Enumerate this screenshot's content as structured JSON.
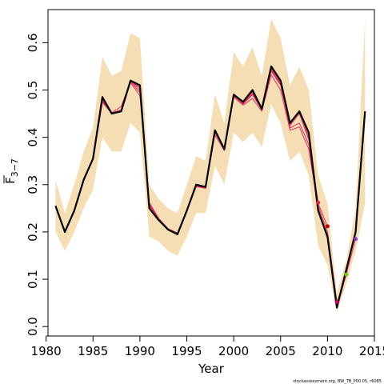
{
  "chart_data": {
    "type": "line",
    "xlabel": "Year",
    "ylabel_base": "F",
    "ylabel_sub": "3−7",
    "footer": "stockassessment.org, BW_TB_P00.05, r6085",
    "xlim": [
      1980.2,
      2015.0
    ],
    "ylim": [
      -0.02,
      0.67
    ],
    "x_ticks": [
      1980,
      1985,
      1990,
      1995,
      2000,
      2005,
      2010,
      2015
    ],
    "x_tick_labels": [
      "1980",
      "1985",
      "1990",
      "1995",
      "2000",
      "2005",
      "2010",
      "2015"
    ],
    "y_ticks": [
      0.0,
      0.1,
      0.2,
      0.3,
      0.4,
      0.5,
      0.6
    ],
    "y_tick_labels": [
      "0.0",
      "0.1",
      "0.2",
      "0.3",
      "0.4",
      "0.5",
      "0.6"
    ],
    "colors": {
      "band": "#f5deb3",
      "main": "#000000",
      "retro": "#e0205a",
      "markers": [
        "#e0205a",
        "#cc0000",
        "#cc0066",
        "#66cc00",
        "#9933cc"
      ]
    },
    "confidence_band": {
      "x": [
        1981,
        1982,
        1983,
        1984,
        1985,
        1986,
        1987,
        1988,
        1989,
        1990,
        1991,
        1992,
        1993,
        1994,
        1995,
        1996,
        1997,
        1998,
        1999,
        2000,
        2001,
        2002,
        2003,
        2004,
        2005,
        2006,
        2007,
        2008,
        2009,
        2010,
        2011,
        2012,
        2013,
        2014
      ],
      "upper": [
        0.31,
        0.24,
        0.3,
        0.37,
        0.42,
        0.57,
        0.53,
        0.54,
        0.62,
        0.61,
        0.3,
        0.27,
        0.25,
        0.24,
        0.3,
        0.36,
        0.35,
        0.49,
        0.43,
        0.58,
        0.55,
        0.59,
        0.53,
        0.65,
        0.61,
        0.51,
        0.55,
        0.5,
        0.32,
        0.26,
        0.07,
        0.14,
        0.25,
        0.65
      ],
      "lower": [
        0.2,
        0.16,
        0.2,
        0.25,
        0.29,
        0.4,
        0.37,
        0.37,
        0.43,
        0.41,
        0.19,
        0.18,
        0.16,
        0.15,
        0.19,
        0.24,
        0.24,
        0.34,
        0.3,
        0.41,
        0.39,
        0.41,
        0.38,
        0.47,
        0.43,
        0.35,
        0.37,
        0.32,
        0.17,
        0.13,
        0.03,
        0.09,
        0.16,
        0.26
      ]
    },
    "series": [
      {
        "x": [
          1981,
          1982,
          1983,
          1984,
          1985,
          1986,
          1987,
          1988,
          1989,
          1990,
          1991,
          1992,
          1993,
          1994,
          1995,
          1996,
          1997,
          1998,
          1999,
          2000,
          2001,
          2002,
          2003,
          2004,
          2005,
          2006,
          2007,
          2008,
          2009,
          2010,
          2011,
          2012,
          2013,
          2014
        ],
        "values": [
          0.255,
          0.2,
          0.245,
          0.31,
          0.355,
          0.485,
          0.45,
          0.455,
          0.52,
          0.51,
          0.25,
          0.225,
          0.205,
          0.195,
          0.245,
          0.3,
          0.295,
          0.415,
          0.375,
          0.49,
          0.475,
          0.5,
          0.46,
          0.55,
          0.52,
          0.43,
          0.455,
          0.41,
          0.245,
          0.19,
          0.04,
          0.12,
          0.2,
          0.455
        ]
      },
      {
        "x": [
          1981,
          1982,
          1983,
          1984,
          1985,
          1986,
          1987,
          1988,
          1989,
          1990,
          1991,
          1992,
          1993,
          1994,
          1995,
          1996,
          1997,
          1998,
          1999,
          2000,
          2001,
          2002,
          2003,
          2004,
          2005,
          2006,
          2007,
          2008,
          2009
        ],
        "values": [
          0.252,
          0.201,
          0.244,
          0.309,
          0.354,
          0.475,
          0.452,
          0.465,
          0.518,
          0.495,
          0.258,
          0.228,
          0.206,
          0.197,
          0.244,
          0.297,
          0.294,
          0.41,
          0.376,
          0.488,
          0.47,
          0.49,
          0.458,
          0.54,
          0.51,
          0.425,
          0.45,
          0.395,
          0.262
        ]
      },
      {
        "x": [
          1981,
          1982,
          1983,
          1984,
          1985,
          1986,
          1987,
          1988,
          1989,
          1990,
          1991,
          1992,
          1993,
          1994,
          1995,
          1996,
          1997,
          1998,
          1999,
          2000,
          2001,
          2002,
          2003,
          2004,
          2005,
          2006,
          2007,
          2008,
          2009,
          2010
        ],
        "values": [
          0.254,
          0.202,
          0.246,
          0.312,
          0.356,
          0.48,
          0.452,
          0.458,
          0.519,
          0.505,
          0.262,
          0.229,
          0.207,
          0.198,
          0.246,
          0.299,
          0.296,
          0.412,
          0.377,
          0.492,
          0.474,
          0.495,
          0.46,
          0.545,
          0.515,
          0.428,
          0.455,
          0.4,
          0.26,
          0.212
        ]
      },
      {
        "x": [
          1981,
          1982,
          1983,
          1984,
          1985,
          1986,
          1987,
          1988,
          1989,
          1990,
          1991,
          1992,
          1993,
          1994,
          1995,
          1996,
          1997,
          1998,
          1999,
          2000,
          2001,
          2002,
          2003,
          2004,
          2005,
          2006,
          2007,
          2008,
          2009,
          2010,
          2011
        ],
        "values": [
          0.253,
          0.2,
          0.245,
          0.31,
          0.355,
          0.478,
          0.451,
          0.455,
          0.52,
          0.5,
          0.26,
          0.228,
          0.206,
          0.196,
          0.245,
          0.298,
          0.295,
          0.41,
          0.375,
          0.49,
          0.472,
          0.492,
          0.458,
          0.542,
          0.512,
          0.42,
          0.43,
          0.385,
          0.255,
          0.2,
          0.052
        ]
      },
      {
        "x": [
          1981,
          1982,
          1983,
          1984,
          1985,
          1986,
          1987,
          1988,
          1989,
          1990,
          1991,
          1992,
          1993,
          1994,
          1995,
          1996,
          1997,
          1998,
          1999,
          2000,
          2001,
          2002,
          2003,
          2004,
          2005,
          2006,
          2007,
          2008,
          2009,
          2010,
          2011,
          2012
        ],
        "values": [
          0.254,
          0.2,
          0.244,
          0.309,
          0.353,
          0.474,
          0.45,
          0.456,
          0.516,
          0.488,
          0.255,
          0.226,
          0.204,
          0.195,
          0.244,
          0.296,
          0.292,
          0.405,
          0.372,
          0.485,
          0.468,
          0.482,
          0.455,
          0.532,
          0.5,
          0.415,
          0.422,
          0.375,
          0.25,
          0.19,
          0.05,
          0.11
        ]
      },
      {
        "x": [
          1981,
          1982,
          1983,
          1984,
          1985,
          1986,
          1987,
          1988,
          1989,
          1990,
          1991,
          1992,
          1993,
          1994,
          1995,
          1996,
          1997,
          1998,
          1999,
          2000,
          2001,
          2002,
          2003,
          2004,
          2005,
          2006,
          2007,
          2008,
          2009,
          2010,
          2011,
          2012,
          2013
        ],
        "values": [
          0.254,
          0.2,
          0.245,
          0.31,
          0.354,
          0.482,
          0.45,
          0.455,
          0.52,
          0.505,
          0.252,
          0.225,
          0.205,
          0.196,
          0.245,
          0.3,
          0.295,
          0.414,
          0.375,
          0.49,
          0.474,
          0.498,
          0.459,
          0.548,
          0.518,
          0.43,
          0.453,
          0.408,
          0.25,
          0.185,
          0.04,
          0.11,
          0.185
        ]
      }
    ],
    "end_markers": [
      {
        "x": 2009,
        "y": 0.262
      },
      {
        "x": 2010,
        "y": 0.212
      },
      {
        "x": 2011,
        "y": 0.052
      },
      {
        "x": 2012,
        "y": 0.11
      },
      {
        "x": 2013,
        "y": 0.185
      }
    ]
  }
}
